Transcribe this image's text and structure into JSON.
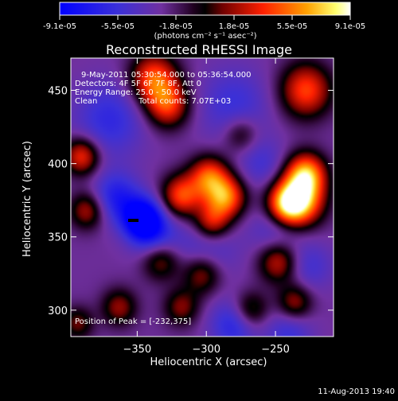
{
  "chart_data": {
    "type": "heatmap",
    "title": "Reconstructed RHESSI Image",
    "xlabel": "Heliocentric X (arcsec)",
    "ylabel": "Heliocentric Y (arcsec)",
    "xlim": [
      -398,
      -208
    ],
    "ylim": [
      282,
      472
    ],
    "x_ticks": [
      -350,
      -300,
      -250
    ],
    "y_ticks": [
      300,
      350,
      400,
      450
    ],
    "annotations": {
      "time_range": "9-May-2011 05:30:54.000 to 05:36:54.000",
      "detectors": "Detectors: 4F 5F 6F 7F 8F, Att 0",
      "energy_range": "Energy Range: 25.0 - 50.0 keV",
      "clean": "Clean",
      "total_counts": "Total counts: 7.07E+03",
      "peak_position": "Position of Peak = [-232,375]"
    },
    "colorbar": {
      "labels": [
        "-9.1e-05",
        "-5.5e-05",
        "-1.8e-05",
        "1.8e-05",
        "5.5e-05",
        "9.1e-05"
      ],
      "range": [
        -9.1e-05,
        9.1e-05
      ],
      "units": "(photons cm⁻² s⁻¹ asec⁻²)"
    },
    "colors": [
      "#0000ff",
      "#5a2ee0",
      "#7a3aa8",
      "#000000",
      "#a00000",
      "#ff3a00",
      "#ffa000",
      "#ffff60",
      "#ffffff"
    ],
    "sources": [
      {
        "x": -232,
        "y": 375,
        "amp": 9.1e-05,
        "sigma": 12
      },
      {
        "x": -228,
        "y": 393,
        "amp": 8.6e-05,
        "sigma": 10
      },
      {
        "x": -242,
        "y": 372,
        "amp": 7.8e-05,
        "sigma": 10
      },
      {
        "x": -286,
        "y": 377,
        "amp": 8e-05,
        "sigma": 10
      },
      {
        "x": -298,
        "y": 391,
        "amp": 7e-05,
        "sigma": 10
      },
      {
        "x": -318,
        "y": 378,
        "amp": 6.8e-05,
        "sigma": 10
      },
      {
        "x": -296,
        "y": 360,
        "amp": 5.5e-05,
        "sigma": 9
      },
      {
        "x": -338,
        "y": 458,
        "amp": 7.2e-05,
        "sigma": 12
      },
      {
        "x": -328,
        "y": 440,
        "amp": 6.4e-05,
        "sigma": 11
      },
      {
        "x": -228,
        "y": 450,
        "amp": 6.8e-05,
        "sigma": 13
      },
      {
        "x": -390,
        "y": 405,
        "amp": 6.4e-05,
        "sigma": 9
      },
      {
        "x": -386,
        "y": 368,
        "amp": 4.8e-05,
        "sigma": 9
      },
      {
        "x": -333,
        "y": 335,
        "amp": 5.4e-05,
        "sigma": 10
      },
      {
        "x": -303,
        "y": 325,
        "amp": 5e-05,
        "sigma": 10
      },
      {
        "x": -248,
        "y": 333,
        "amp": 5.4e-05,
        "sigma": 10
      },
      {
        "x": -363,
        "y": 302,
        "amp": 4.2e-05,
        "sigma": 9
      },
      {
        "x": -318,
        "y": 302,
        "amp": 3.9e-05,
        "sigma": 9
      },
      {
        "x": -268,
        "y": 300,
        "amp": 4.2e-05,
        "sigma": 9
      },
      {
        "x": -236,
        "y": 305,
        "amp": 4.6e-05,
        "sigma": 9
      },
      {
        "x": -393,
        "y": 291,
        "amp": 3.6e-05,
        "sigma": 8
      },
      {
        "x": -275,
        "y": 420,
        "amp": 3.4e-05,
        "sigma": 9
      },
      {
        "x": -346,
        "y": 362,
        "amp": -9.1e-05,
        "sigma": 10
      },
      {
        "x": -365,
        "y": 377,
        "amp": -4.5e-05,
        "sigma": 12
      },
      {
        "x": -335,
        "y": 347,
        "amp": -4e-05,
        "sigma": 12
      },
      {
        "x": -370,
        "y": 430,
        "amp": -3.5e-05,
        "sigma": 18
      },
      {
        "x": -280,
        "y": 440,
        "amp": -3e-05,
        "sigma": 18
      },
      {
        "x": -300,
        "y": 340,
        "amp": -2.8e-05,
        "sigma": 15
      },
      {
        "x": -250,
        "y": 355,
        "amp": -2.6e-05,
        "sigma": 13
      },
      {
        "x": -280,
        "y": 290,
        "amp": -4e-05,
        "sigma": 12
      },
      {
        "x": -240,
        "y": 285,
        "amp": -3e-05,
        "sigma": 12
      },
      {
        "x": -225,
        "y": 330,
        "amp": -2.5e-05,
        "sigma": 12
      },
      {
        "x": -260,
        "y": 400,
        "amp": -2.4e-05,
        "sigma": 12
      }
    ]
  },
  "footer": {
    "timestamp": "11-Aug-2013 19:40"
  }
}
